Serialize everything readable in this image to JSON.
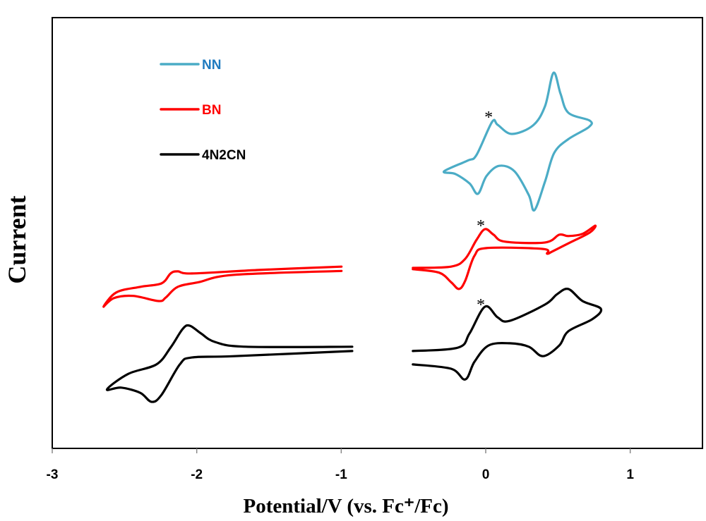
{
  "chart_data": {
    "type": "line",
    "title": "",
    "xlabel": "Potential/V  (vs. Fc⁺/Fc)",
    "ylabel": "Current",
    "xlim": [
      -3,
      1.5
    ],
    "ylim": [
      0,
      100
    ],
    "xticks": [
      "-3",
      "-2",
      "-1",
      "0",
      "1"
    ],
    "xtick_values": [
      -3,
      -2,
      -1,
      0,
      1
    ],
    "grid": false,
    "legend_position": "top-left",
    "y_units": "arbitrary (curves vertically offset)",
    "series": [
      {
        "name": "NN",
        "color": "#4BACC6",
        "label_color": "#1F7BC0",
        "closed": true,
        "segments": [
          {
            "x": [
              -0.289,
              -0.127,
              -0.064,
              0.044,
              0.083,
              0.181,
              0.328,
              0.411,
              0.469,
              0.518,
              0.572,
              0.719,
              0.714,
              0.572,
              0.474,
              0.411,
              0.337,
              0.298,
              0.2,
              0.093,
              0.005,
              -0.054,
              -0.112,
              -0.21
            ],
            "y": [
              64.3,
              66.8,
              68.1,
              75.8,
              75.1,
              73.0,
              75.0,
              79.5,
              87.2,
              82.3,
              77.9,
              76.1,
              74.6,
              71.8,
              68.6,
              62.0,
              55.3,
              58.8,
              64.3,
              65.6,
              63.2,
              59.1,
              61.5,
              63.7
            ]
          }
        ]
      },
      {
        "name": "BN",
        "color": "#FF0000",
        "label_color": "#FF0000",
        "closed": false,
        "segments": [
          {
            "x": [
              -0.998,
              -1.579,
              -2.034,
              -2.132,
              -2.181,
              -2.244,
              -2.391,
              -2.557,
              -2.645,
              -2.572,
              -2.44,
              -2.264,
              -2.215,
              -2.132,
              -1.985,
              -1.741,
              -0.998
            ],
            "y": [
              42.2,
              41.4,
              40.6,
              41.1,
              40.6,
              38.3,
              37.5,
              36.2,
              32.9,
              34.9,
              35.4,
              34.2,
              35.0,
              37.5,
              38.6,
              40.3,
              41.2
            ]
          },
          {
            "x": [
              -0.504,
              -0.24,
              -0.142,
              -0.064,
              -0.005,
              0.054,
              0.132,
              0.411,
              0.509,
              0.572,
              0.67,
              0.758,
              0.719,
              0.572,
              0.46,
              0.425,
              0.396,
              0.005,
              -0.078,
              -0.142,
              -0.186,
              -0.24,
              -0.323,
              -0.504
            ],
            "y": [
              41.9,
              42.2,
              44.0,
              48.4,
              50.9,
              49.6,
              48.0,
              47.8,
              49.6,
              49.3,
              49.8,
              51.7,
              50.1,
              47.6,
              45.7,
              45.2,
              46.3,
              46.5,
              44.7,
              38.9,
              37.0,
              38.6,
              40.8,
              41.6
            ]
          }
        ]
      },
      {
        "name": "4N2CN",
        "color": "#000000",
        "label_color": "#000000",
        "closed": false,
        "segments": [
          {
            "x": [
              -0.924,
              -1.658,
              -1.873,
              -1.971,
              -2.049,
              -2.098,
              -2.181,
              -2.279,
              -2.474,
              -2.621,
              -2.523,
              -2.391,
              -2.313,
              -2.244,
              -2.117,
              -2.034,
              -1.741,
              -0.924
            ],
            "y": [
              23.6,
              23.6,
              24.7,
              26.7,
              28.5,
              27.7,
              23.4,
              19.5,
              17.3,
              13.7,
              14.1,
              12.9,
              10.8,
              12.4,
              19.5,
              21.1,
              21.4,
              22.6
            ]
          },
          {
            "x": [
              -0.504,
              -0.191,
              -0.112,
              -0.005,
              0.083,
              0.166,
              0.411,
              0.494,
              0.572,
              0.67,
              0.797,
              0.738,
              0.572,
              0.509,
              0.396,
              0.298,
              0.166,
              0.02,
              -0.078,
              -0.142,
              -0.24,
              -0.504
            ],
            "y": [
              22.6,
              23.4,
              26.7,
              32.9,
              30.4,
              29.6,
              33.4,
              35.8,
              37.0,
              34.2,
              32.4,
              30.0,
              27.2,
              23.9,
              21.4,
              23.6,
              24.4,
              23.9,
              20.1,
              16.0,
              18.5,
              19.5
            ]
          }
        ]
      }
    ],
    "annotations": [
      {
        "text": "*",
        "x": 0.02,
        "y": 77.9
      },
      {
        "text": "*",
        "x": -0.034,
        "y": 52.7
      },
      {
        "text": "*",
        "x": -0.034,
        "y": 34.4
      }
    ]
  }
}
